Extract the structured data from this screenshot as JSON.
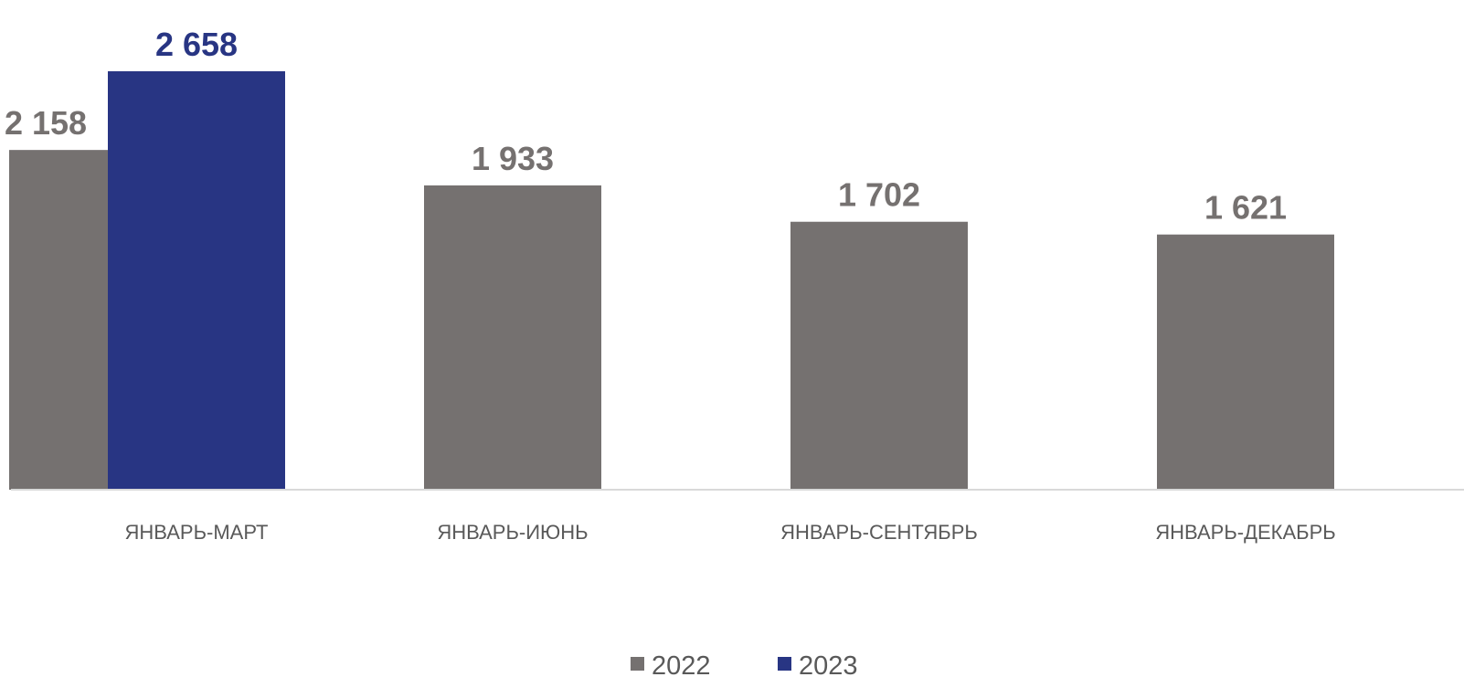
{
  "chart_data": {
    "type": "bar",
    "categories": [
      "ЯНВАРЬ-МАРТ",
      "ЯНВАРЬ-ИЮНЬ",
      "ЯНВАРЬ-СЕНТЯБРЬ",
      "ЯНВАРЬ-ДЕКАБРЬ"
    ],
    "series": [
      {
        "name": "2022",
        "color": "#757170",
        "values": [
          2158,
          1933,
          1702,
          1621
        ],
        "labels": [
          "2 158",
          "1 933",
          "1 702",
          "1 621"
        ]
      },
      {
        "name": "2023",
        "color": "#283583",
        "values": [
          2658,
          null,
          null,
          null
        ],
        "labels": [
          "2 658",
          "",
          "",
          ""
        ]
      }
    ],
    "title": "",
    "xlabel": "",
    "ylabel": "",
    "ylim": [
      0,
      2658
    ],
    "grid": false,
    "legend_position": "bottom-center"
  }
}
